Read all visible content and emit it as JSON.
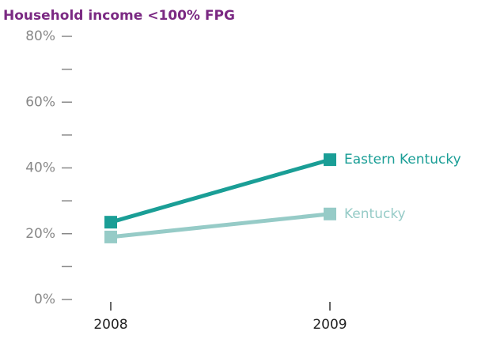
{
  "chart_data": {
    "type": "line",
    "title": "Household income <100% FPG",
    "categories": [
      "2008",
      "2009"
    ],
    "series": [
      {
        "name": "Eastern Kentucky",
        "color": "#1a9e96",
        "values": [
          23.5,
          42.5
        ]
      },
      {
        "name": "Kentucky",
        "color": "#96cbc7",
        "values": [
          19,
          26
        ]
      }
    ],
    "ylim": [
      0,
      80
    ],
    "yticks": [
      {
        "value": 0,
        "label": "0%"
      },
      {
        "value": 20,
        "label": "20%"
      },
      {
        "value": 40,
        "label": "40%"
      },
      {
        "value": 60,
        "label": "60%"
      },
      {
        "value": 80,
        "label": "80%"
      }
    ],
    "yminorticks": [
      10,
      30,
      50,
      70
    ]
  }
}
